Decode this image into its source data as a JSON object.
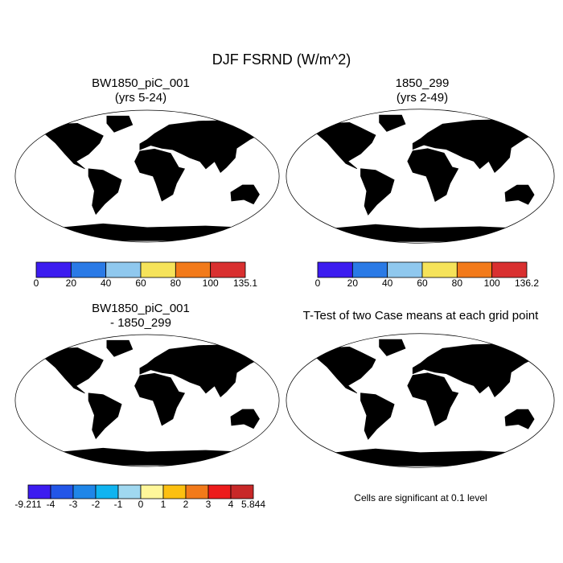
{
  "title": "DJF FSRND (W/m^2)",
  "panels": [
    {
      "title_lines": [
        "BW1850_piC_001",
        "(yrs 5-24)"
      ],
      "colorbar": {
        "colors": [
          "#3c1cf0",
          "#2a7ae6",
          "#8fc8ee",
          "#f6e35a",
          "#f27a1a",
          "#d93030"
        ],
        "labels": [
          "0",
          "20",
          "40",
          "60",
          "80",
          "100",
          "135.1"
        ]
      }
    },
    {
      "title_lines": [
        "1850_299",
        "(yrs 2-49)"
      ],
      "colorbar": {
        "colors": [
          "#3c1cf0",
          "#2a7ae6",
          "#8fc8ee",
          "#f6e35a",
          "#f27a1a",
          "#d93030"
        ],
        "labels": [
          "0",
          "20",
          "40",
          "60",
          "80",
          "100",
          "136.2"
        ]
      }
    },
    {
      "title_lines": [
        "BW1850_piC_001",
        "- 1850_299"
      ],
      "colorbar": {
        "colors": [
          "#3c1cf0",
          "#2356e8",
          "#1f86e8",
          "#10b4f0",
          "#a0d8f0",
          "#fff79a",
          "#fcc010",
          "#f27a1a",
          "#ec1c1c",
          "#c82828"
        ],
        "labels": [
          "-9.211",
          "-4",
          "-3",
          "-2",
          "-1",
          "0",
          "1",
          "2",
          "3",
          "4",
          "5.844"
        ]
      }
    },
    {
      "title_lines": [
        "T-Test of two Case means at each grid point"
      ],
      "note": "Cells are significant at 0.1 level"
    }
  ]
}
